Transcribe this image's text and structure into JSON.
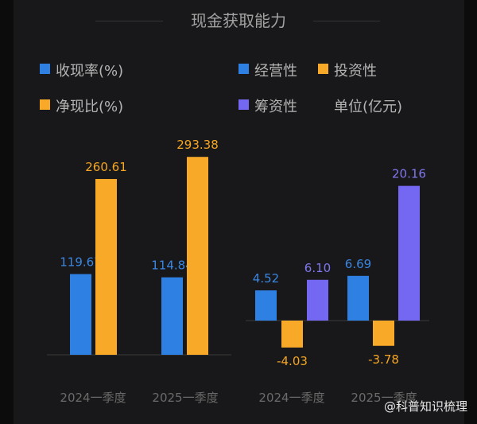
{
  "title": "现金获取能力",
  "unit_label": "单位(亿元)",
  "watermark": "@科普知识梳理",
  "colors": {
    "blue": "#2f80e3",
    "orange": "#f9a928",
    "purple": "#7468f2",
    "label_blue": "#3a86e0",
    "label_orange": "#f5a623",
    "label_purple": "#8077f0"
  },
  "chart_data": [
    {
      "type": "bar",
      "categories": [
        "2024一季度",
        "2025一季度"
      ],
      "series": [
        {
          "name": "收现率(%)",
          "values": [
            119.67,
            114.84
          ],
          "color": "#2f80e3"
        },
        {
          "name": "净现比(%)",
          "values": [
            260.61,
            293.38
          ],
          "color": "#f9a928"
        }
      ],
      "data_labels": [
        [
          "119.67",
          "114.84"
        ],
        [
          "260.61",
          "293.38"
        ]
      ],
      "ylim": [
        0,
        300
      ],
      "grid": false,
      "legend": "top-left"
    },
    {
      "type": "bar",
      "categories": [
        "2024一季度",
        "2025一季度"
      ],
      "series": [
        {
          "name": "经营性",
          "values": [
            4.52,
            6.69
          ],
          "color": "#2f80e3"
        },
        {
          "name": "投资性",
          "values": [
            -4.03,
            -3.78
          ],
          "color": "#f9a928"
        },
        {
          "name": "筹资性",
          "values": [
            6.1,
            20.16
          ],
          "color": "#7468f2"
        }
      ],
      "data_labels": [
        [
          "4.52",
          "6.69"
        ],
        [
          "-4.03",
          "-3.78"
        ],
        [
          "6.10",
          "20.16"
        ]
      ],
      "ylabel": "单位(亿元)",
      "grid": false,
      "legend": "top-right"
    }
  ]
}
